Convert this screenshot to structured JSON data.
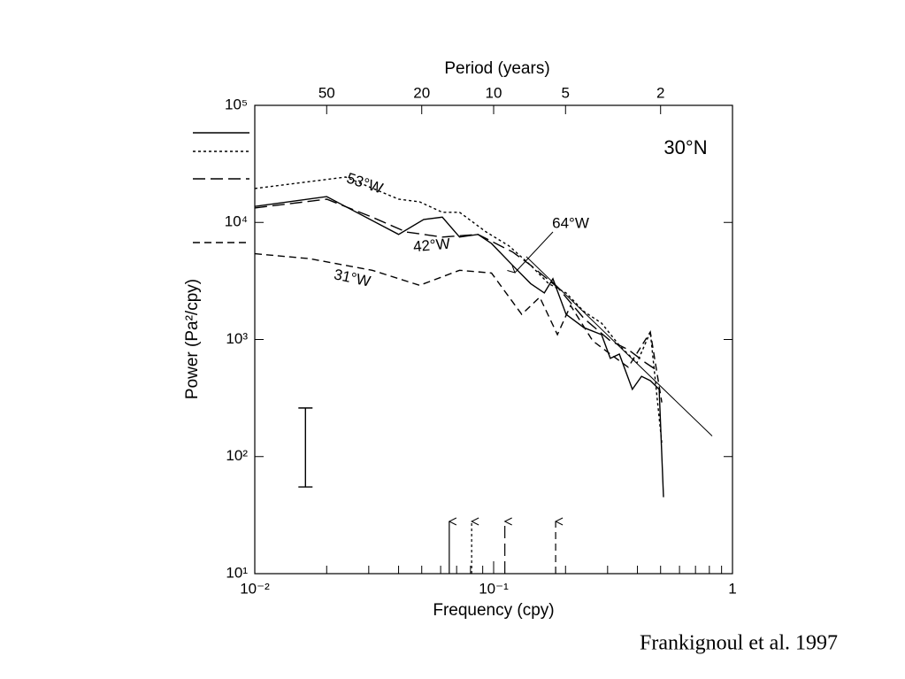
{
  "chart_data": {
    "type": "line",
    "panel_label": "30°N",
    "xlabel": "Frequency (cpy)",
    "ylabel": "Power (Pa²/cpy)",
    "x2label": "Period (years)",
    "citation": "Frankignoul et al. 1997",
    "log_x": true,
    "log_y": true,
    "xlim": [
      0.01,
      1
    ],
    "ylim": [
      10,
      100000
    ],
    "xticks": [
      {
        "value": 0.01,
        "label": "10⁻²"
      },
      {
        "value": 0.1,
        "label": "10⁻¹"
      },
      1
    ],
    "xminorticks": [
      0.02,
      0.03,
      0.04,
      0.05,
      0.06,
      0.07,
      0.08,
      0.09,
      0.2,
      0.3,
      0.4,
      0.5,
      0.6,
      0.7,
      0.8,
      0.9
    ],
    "x2ticks": [
      {
        "value": 0.02,
        "label": "50"
      },
      {
        "value": 0.05,
        "label": "20"
      },
      {
        "value": 0.1,
        "label": "10"
      },
      {
        "value": 0.2,
        "label": "5"
      },
      {
        "value": 0.5,
        "label": "2"
      }
    ],
    "yticks": [
      {
        "value": 10,
        "label": "10¹"
      },
      {
        "value": 100,
        "label": "10²"
      },
      {
        "value": 1000,
        "label": "10³"
      },
      {
        "value": 10000,
        "label": "10⁴"
      },
      {
        "value": 100000,
        "label": "10⁵"
      }
    ],
    "series": [
      {
        "name": "64°W",
        "color": "#000000",
        "dash": "solid",
        "arrow_x": 0.0652,
        "x": [
          0.01,
          0.02,
          0.04,
          0.051,
          0.061,
          0.072,
          0.086,
          0.098,
          0.12,
          0.143,
          0.163,
          0.177,
          0.201,
          0.239,
          0.283,
          0.308,
          0.336,
          0.381,
          0.416,
          0.453,
          0.493,
          0.514
        ],
        "values": [
          13700,
          16600,
          7900,
          10600,
          11100,
          7500,
          7900,
          6600,
          4300,
          3000,
          2500,
          3300,
          1640,
          1260,
          1100,
          690,
          750,
          375,
          485,
          445,
          375,
          45
        ]
      },
      {
        "name": "53°W",
        "color": "#000000",
        "dash": "dotted",
        "arrow_x": 0.0809,
        "x": [
          0.01,
          0.024,
          0.04,
          0.049,
          0.061,
          0.072,
          0.093,
          0.116,
          0.143,
          0.17,
          0.201,
          0.239,
          0.283,
          0.336,
          0.398,
          0.453,
          0.506
        ],
        "values": [
          19500,
          24400,
          15800,
          15000,
          12200,
          12200,
          8300,
          6300,
          4300,
          3000,
          2500,
          1730,
          1380,
          890,
          630,
          1160,
          130
        ]
      },
      {
        "name": "42°W",
        "color": "#000000",
        "dash": "longdash",
        "arrow_x": 0.1114,
        "x": [
          0.01,
          0.02,
          0.031,
          0.043,
          0.061,
          0.086,
          0.12,
          0.143,
          0.185,
          0.239,
          0.308,
          0.366,
          0.434,
          0.493
        ],
        "values": [
          13300,
          15800,
          11100,
          8300,
          7500,
          7900,
          5600,
          4300,
          2800,
          1510,
          975,
          820,
          630,
          530
        ]
      },
      {
        "name": "31°W",
        "color": "#000000",
        "dash": "dash",
        "arrow_x": 0.1818,
        "x": [
          0.01,
          0.017,
          0.031,
          0.049,
          0.072,
          0.098,
          0.131,
          0.156,
          0.185,
          0.21,
          0.26,
          0.308,
          0.366,
          0.453,
          0.506
        ],
        "values": [
          5400,
          4900,
          3900,
          2900,
          3900,
          3700,
          1640,
          2300,
          1100,
          1950,
          975,
          750,
          580,
          1160,
          290
        ]
      }
    ],
    "reference_line": {
      "x": [
        0.137,
        0.822
      ],
      "values": [
        5100,
        150
      ]
    },
    "error_bar": {
      "x": 0.0163,
      "low": 55,
      "high": 260
    }
  }
}
